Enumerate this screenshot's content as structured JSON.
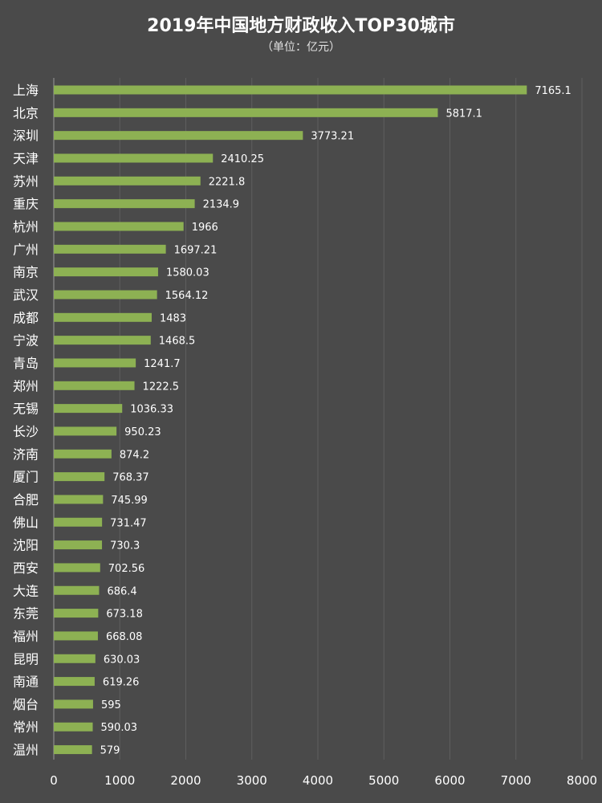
{
  "chart_data": {
    "type": "bar",
    "orientation": "horizontal",
    "title": "2019年中国地方财政收入TOP30城市",
    "subtitle": "（单位：亿元）",
    "bar_color": "#8db153",
    "grid": true,
    "xlim": [
      0,
      8000
    ],
    "xticks": [
      0,
      1000,
      2000,
      3000,
      4000,
      5000,
      6000,
      7000,
      8000
    ],
    "categories": [
      "上海",
      "北京",
      "深圳",
      "天津",
      "苏州",
      "重庆",
      "杭州",
      "广州",
      "南京",
      "武汉",
      "成都",
      "宁波",
      "青岛",
      "郑州",
      "无锡",
      "长沙",
      "济南",
      "厦门",
      "合肥",
      "佛山",
      "沈阳",
      "西安",
      "大连",
      "东莞",
      "福州",
      "昆明",
      "南通",
      "烟台",
      "常州",
      "温州"
    ],
    "values": [
      7165.1,
      5817.1,
      3773.21,
      2410.25,
      2221.8,
      2134.9,
      1966,
      1697.21,
      1580.03,
      1564.12,
      1483,
      1468.5,
      1241.7,
      1222.5,
      1036.33,
      950.23,
      874.2,
      768.37,
      745.99,
      731.47,
      730.3,
      702.56,
      686.4,
      673.18,
      668.08,
      630.03,
      619.26,
      595,
      590.03,
      579
    ],
    "value_labels": [
      "7165.1",
      "5817.1",
      "3773.21",
      "2410.25",
      "2221.8",
      "2134.9",
      "1966",
      "1697.21",
      "1580.03",
      "1564.12",
      "1483",
      "1468.5",
      "1241.7",
      "1222.5",
      "1036.33",
      "950.23",
      "874.2",
      "768.37",
      "745.99",
      "731.47",
      "730.3",
      "702.56",
      "686.4",
      "673.18",
      "668.08",
      "630.03",
      "619.26",
      "595",
      "590.03",
      "579"
    ]
  }
}
